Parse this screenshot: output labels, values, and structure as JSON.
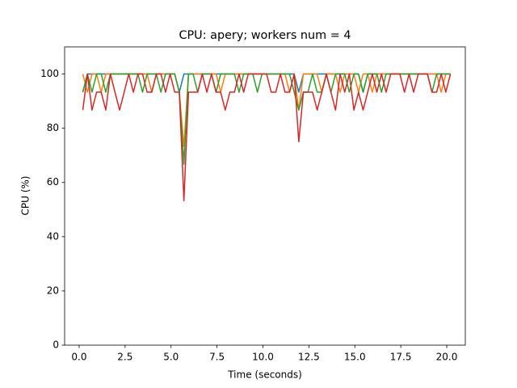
{
  "chart_data": {
    "type": "line",
    "title": "CPU: apery; workers num = 4",
    "x_label": "Time (seconds)",
    "y_label": "CPU (%)",
    "x": [
      0.2,
      0.45,
      0.7,
      0.95,
      1.2,
      1.45,
      1.7,
      1.95,
      2.2,
      2.45,
      2.7,
      2.95,
      3.2,
      3.45,
      3.7,
      3.95,
      4.2,
      4.45,
      4.7,
      4.95,
      5.2,
      5.45,
      5.7,
      5.95,
      6.2,
      6.45,
      6.7,
      6.95,
      7.2,
      7.45,
      7.7,
      7.95,
      8.2,
      8.45,
      8.7,
      8.95,
      9.2,
      9.45,
      9.7,
      9.95,
      10.2,
      10.45,
      10.7,
      10.95,
      11.2,
      11.45,
      11.7,
      11.95,
      12.2,
      12.45,
      12.7,
      12.95,
      13.2,
      13.45,
      13.7,
      13.95,
      14.2,
      14.45,
      14.7,
      14.95,
      15.2,
      15.45,
      15.7,
      15.95,
      16.2,
      16.45,
      16.7,
      16.95,
      17.2,
      17.45,
      17.7,
      17.95,
      18.2,
      18.45,
      18.7,
      18.95,
      19.2,
      19.45,
      19.7,
      19.95,
      20.2
    ],
    "series": [
      {
        "color": "#1f77b4",
        "values": [
          93.3,
          100,
          100,
          100,
          100,
          100,
          100,
          100,
          100,
          100,
          100,
          100,
          100,
          100,
          100,
          100,
          100,
          100,
          100,
          100,
          100,
          93.3,
          100,
          100,
          100,
          100,
          100,
          100,
          100,
          100,
          100,
          100,
          100,
          100,
          100,
          100,
          100,
          100,
          100,
          100,
          100,
          100,
          100,
          100,
          100,
          100,
          100,
          93.3,
          100,
          100,
          100,
          100,
          100,
          100,
          100,
          100,
          100,
          100,
          100,
          100,
          100,
          93.3,
          100,
          100,
          100,
          100,
          100,
          100,
          100,
          100,
          100,
          100,
          100,
          100,
          100,
          100,
          100,
          100,
          100,
          100,
          100
        ]
      },
      {
        "color": "#ff7f0e",
        "values": [
          100,
          93.3,
          100,
          100,
          93.3,
          100,
          100,
          100,
          100,
          100,
          100,
          100,
          100,
          100,
          100,
          93.3,
          100,
          100,
          100,
          100,
          100,
          93.3,
          73.3,
          100,
          100,
          100,
          100,
          100,
          100,
          100,
          93.3,
          100,
          100,
          100,
          100,
          100,
          100,
          100,
          100,
          100,
          100,
          100,
          100,
          100,
          100,
          93.3,
          100,
          86.7,
          100,
          100,
          100,
          100,
          93.3,
          100,
          100,
          100,
          93.3,
          100,
          100,
          100,
          93.3,
          100,
          100,
          93.3,
          100,
          100,
          100,
          100,
          100,
          100,
          100,
          100,
          100,
          100,
          100,
          100,
          100,
          100,
          93.3,
          100,
          100
        ]
      },
      {
        "color": "#2ca02c",
        "values": [
          93.3,
          100,
          93.3,
          100,
          100,
          93.3,
          100,
          100,
          100,
          100,
          100,
          100,
          100,
          93.3,
          100,
          100,
          100,
          93.3,
          100,
          100,
          100,
          93.3,
          66.7,
          100,
          100,
          93.3,
          100,
          100,
          100,
          93.3,
          100,
          100,
          100,
          100,
          93.3,
          100,
          100,
          100,
          93.3,
          100,
          100,
          100,
          100,
          100,
          100,
          100,
          93.3,
          86.7,
          93.3,
          93.3,
          100,
          93.3,
          93.3,
          100,
          93.3,
          100,
          100,
          100,
          93.3,
          100,
          100,
          93.3,
          100,
          100,
          100,
          93.3,
          100,
          100,
          100,
          100,
          100,
          100,
          100,
          100,
          100,
          100,
          93.3,
          100,
          100,
          100,
          100
        ]
      },
      {
        "color": "#d62728",
        "values": [
          86.7,
          100,
          86.7,
          93.3,
          93.3,
          86.7,
          100,
          93.3,
          86.7,
          93.3,
          100,
          93.3,
          100,
          100,
          93.3,
          93.3,
          100,
          100,
          93.3,
          100,
          93.3,
          93.3,
          53.3,
          93.3,
          93.3,
          93.3,
          100,
          93.3,
          100,
          93.3,
          93.3,
          86.7,
          93.3,
          93.3,
          100,
          93.3,
          100,
          100,
          100,
          100,
          100,
          93.3,
          93.3,
          100,
          93.3,
          93.3,
          100,
          75,
          93.3,
          93.3,
          93.3,
          86.7,
          93.3,
          100,
          93.3,
          86.7,
          100,
          93.3,
          100,
          86.7,
          93.3,
          86.7,
          93.3,
          100,
          93.3,
          100,
          93.3,
          100,
          100,
          100,
          93.3,
          100,
          93.3,
          100,
          100,
          100,
          93.3,
          93.3,
          100,
          93.3,
          100
        ]
      }
    ],
    "xlim": [
      -0.79,
      21.01
    ],
    "ylim": [
      0,
      110
    ],
    "xticks": [
      {
        "value": 0,
        "label": "0.0"
      },
      2.5,
      {
        "value": 5,
        "label": "5.0"
      },
      7.5,
      {
        "value": 10,
        "label": "10.0"
      },
      12.5,
      {
        "value": 15,
        "label": "15.0"
      },
      17.5,
      {
        "value": 20,
        "label": "20.0"
      }
    ],
    "yticks": [
      0,
      20,
      40,
      60,
      80,
      100
    ]
  }
}
